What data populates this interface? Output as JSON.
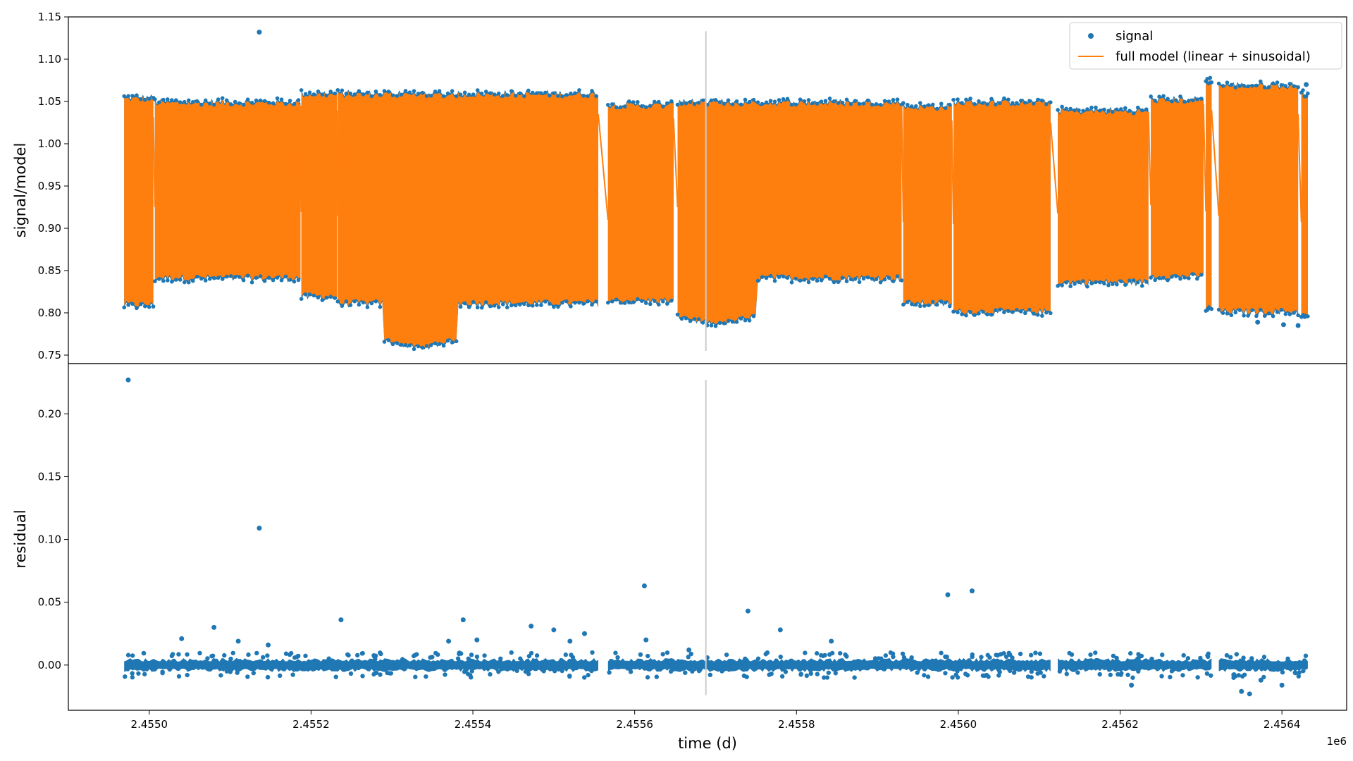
{
  "chart_data": [
    {
      "type": "scatter",
      "panel": "top",
      "xlabel": "",
      "ylabel": "signal/model",
      "xlim": [
        2454900,
        2456480
      ],
      "ylim": [
        0.74,
        1.15
      ],
      "yticks": [
        0.75,
        0.8,
        0.85,
        0.9,
        0.95,
        1.0,
        1.05,
        1.1,
        1.15
      ],
      "ytick_labels": [
        "0.75",
        "0.80",
        "0.85",
        "0.90",
        "0.95",
        "1.00",
        "1.05",
        "1.10",
        "1.15"
      ],
      "legend": {
        "placement": "top-right",
        "entries": [
          "signal",
          "full model (linear + sinusoidal)"
        ]
      },
      "series": [
        {
          "name": "signal",
          "kind": "points",
          "color": "#1f77b4"
        },
        {
          "name": "full model (linear + sinusoidal)",
          "kind": "line",
          "color": "#ff7f0e"
        }
      ],
      "segments": [
        {
          "x0": 2454969,
          "x1": 2455005,
          "top": 1.055,
          "bottom": 0.808
        },
        {
          "x0": 2455007,
          "x1": 2455187,
          "top": 1.05,
          "bottom": 0.84
        },
        {
          "x0": 2455188,
          "x1": 2455232,
          "top": 1.06,
          "bottom": 0.818
        },
        {
          "x0": 2455233,
          "x1": 2455555,
          "top": 1.06,
          "bottom": 0.81,
          "dip": {
            "x0": 2455290,
            "x1": 2455380,
            "bottom": 0.757
          }
        },
        {
          "x0": 2455567,
          "x1": 2455648,
          "top": 1.047,
          "bottom": 0.813
        },
        {
          "x0": 2455653,
          "x1": 2455930,
          "top": 1.05,
          "bottom": 0.84,
          "dip": {
            "x0": 2455653,
            "x1": 2455750,
            "bottom": 0.785
          }
        },
        {
          "x0": 2455932,
          "x1": 2455992,
          "top": 1.045,
          "bottom": 0.81
        },
        {
          "x0": 2455994,
          "x1": 2456114,
          "top": 1.05,
          "bottom": 0.8
        },
        {
          "x0": 2456123,
          "x1": 2456235,
          "top": 1.04,
          "bottom": 0.835
        },
        {
          "x0": 2456238,
          "x1": 2456303,
          "top": 1.053,
          "bottom": 0.842
        },
        {
          "x0": 2456306,
          "x1": 2456313,
          "top": 1.075,
          "bottom": 0.805
        },
        {
          "x0": 2456322,
          "x1": 2456420,
          "top": 1.07,
          "bottom": 0.8
        },
        {
          "x0": 2456424,
          "x1": 2456432,
          "top": 1.06,
          "bottom": 0.795
        }
      ],
      "outliers": [
        {
          "x": 2455136,
          "y": 1.132
        },
        {
          "x": 2456370,
          "y": 0.789
        },
        {
          "x": 2456402,
          "y": 0.786
        },
        {
          "x": 2456420,
          "y": 0.785
        },
        {
          "x": 2456430,
          "y": 1.07
        }
      ],
      "vline": {
        "x": 2455688,
        "y0": 0.755,
        "y1": 1.133,
        "color": "#cccccc"
      }
    },
    {
      "type": "scatter",
      "panel": "bottom",
      "xlabel": "time (d)",
      "ylabel": "residual",
      "xlim": [
        2454900,
        2456480
      ],
      "ylim": [
        -0.036,
        0.24
      ],
      "xticks": [
        2455000,
        2455200,
        2455400,
        2455600,
        2455800,
        2456000,
        2456200,
        2456400
      ],
      "xtick_labels": [
        "2.4550",
        "2.4552",
        "2.4554",
        "2.4556",
        "2.4558",
        "2.4560",
        "2.4562",
        "2.4564"
      ],
      "x_offset_label": "1e6",
      "yticks": [
        0.0,
        0.05,
        0.1,
        0.15,
        0.2
      ],
      "ytick_labels": [
        "0.00",
        "0.05",
        "0.10",
        "0.15",
        "0.20"
      ],
      "series": [
        {
          "name": "residual",
          "kind": "points",
          "color": "#1f77b4"
        }
      ],
      "segments": [
        {
          "x0": 2454969,
          "x1": 2455555
        },
        {
          "x0": 2455567,
          "x1": 2456114
        },
        {
          "x0": 2456123,
          "x1": 2456313
        },
        {
          "x0": 2456322,
          "x1": 2456432
        }
      ],
      "outliers": [
        {
          "x": 2454974,
          "y": 0.227
        },
        {
          "x": 2455136,
          "y": 0.109
        },
        {
          "x": 2455040,
          "y": 0.021
        },
        {
          "x": 2455080,
          "y": 0.03
        },
        {
          "x": 2455110,
          "y": 0.019
        },
        {
          "x": 2455147,
          "y": 0.016
        },
        {
          "x": 2455237,
          "y": 0.036
        },
        {
          "x": 2455370,
          "y": 0.019
        },
        {
          "x": 2455388,
          "y": 0.036
        },
        {
          "x": 2455405,
          "y": 0.02
        },
        {
          "x": 2455472,
          "y": 0.031
        },
        {
          "x": 2455500,
          "y": 0.028
        },
        {
          "x": 2455520,
          "y": 0.019
        },
        {
          "x": 2455538,
          "y": 0.025
        },
        {
          "x": 2455612,
          "y": 0.063
        },
        {
          "x": 2455614,
          "y": 0.02
        },
        {
          "x": 2455667,
          "y": 0.012
        },
        {
          "x": 2455740,
          "y": 0.043
        },
        {
          "x": 2455780,
          "y": 0.028
        },
        {
          "x": 2455843,
          "y": 0.019
        },
        {
          "x": 2455987,
          "y": 0.056
        },
        {
          "x": 2456017,
          "y": 0.059
        },
        {
          "x": 2456214,
          "y": -0.016
        },
        {
          "x": 2456350,
          "y": -0.021
        },
        {
          "x": 2456360,
          "y": -0.023
        },
        {
          "x": 2456400,
          "y": -0.016
        },
        {
          "x": 2456374,
          "y": -0.012
        }
      ],
      "vline": {
        "x": 2455688,
        "y0": -0.024,
        "y1": 0.227,
        "color": "#cccccc"
      }
    }
  ]
}
